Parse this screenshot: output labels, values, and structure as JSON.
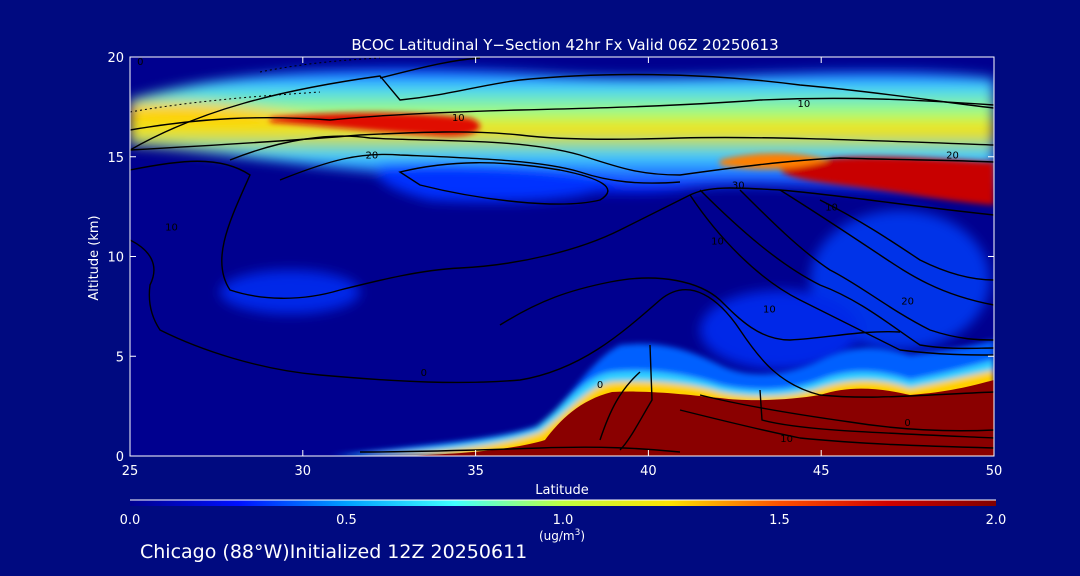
{
  "chart_data": {
    "type": "heatmap",
    "title": "BCOC Latitudinal Y−Section 42hr  Fx Valid 06Z 20250613",
    "xlabel": "Latitude",
    "ylabel": "Altitude (km)",
    "xlim": [
      25,
      50
    ],
    "ylim": [
      0,
      20
    ],
    "x_ticks": [
      "25",
      "30",
      "35",
      "40",
      "45",
      "50"
    ],
    "y_ticks": [
      "0",
      "5",
      "10",
      "15",
      "20"
    ],
    "colorbar": {
      "label_line1": "1.0",
      "label_line2": "(ug/m",
      "label_sup": "3",
      "label_close": ")",
      "ticks": [
        "0.0",
        "0.5",
        "1.0",
        "1.5",
        "2.0"
      ],
      "range": [
        0,
        2
      ],
      "colormap": [
        "#00008f",
        "#0010ff",
        "#00a0ff",
        "#40ffff",
        "#c0ff40",
        "#ffe000",
        "#ff5000",
        "#d00000",
        "#800000"
      ]
    },
    "contour_labels": [
      "0",
      "10",
      "10",
      "20",
      "20",
      "30",
      "10",
      "10",
      "20",
      "10",
      "0",
      "0",
      "10",
      "0",
      "10"
    ],
    "field_regions": [
      {
        "name": "upper-layer-west",
        "lat": [
          25,
          35
        ],
        "alt": [
          16.0,
          18.5
        ],
        "value": 1.3
      },
      {
        "name": "upper-layer-peak",
        "lat": [
          32.5,
          36.5
        ],
        "alt": [
          16.0,
          17.0
        ],
        "value": 1.9
      },
      {
        "name": "upper-layer-east-peak",
        "lat": [
          44,
          50
        ],
        "alt": [
          13.0,
          15.0
        ],
        "value": 2.0
      },
      {
        "name": "near-surface-plume",
        "lat": [
          37.5,
          50
        ],
        "alt": [
          0,
          3.5
        ],
        "value": 2.0
      }
    ]
  },
  "caption": "Chicago (88°W)Initialized 12Z 20250611"
}
